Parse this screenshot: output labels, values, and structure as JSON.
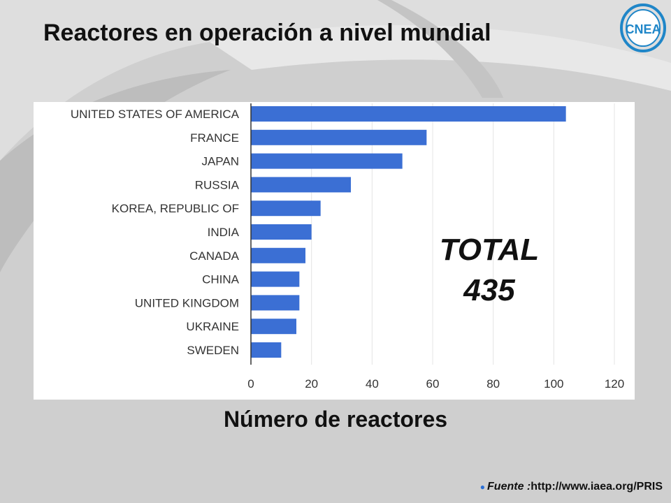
{
  "slide": {
    "title": "Reactores en operación a nivel mundial",
    "logo_text": "CNEA",
    "total_label": "TOTAL",
    "total_value": "435",
    "axis_caption": "Número de reactores",
    "source_label": "Fuente :",
    "source_url": "http://www.iaea.org/PRIS"
  },
  "colors": {
    "bar": "#3b6fd4",
    "logo_blue": "#1f86c8",
    "background": "#cfcfcf"
  },
  "chart_data": {
    "type": "bar",
    "orientation": "horizontal",
    "categories": [
      "UNITED STATES OF AMERICA",
      "FRANCE",
      "JAPAN",
      "RUSSIA",
      "KOREA, REPUBLIC OF",
      "INDIA",
      "CANADA",
      "CHINA",
      "UNITED KINGDOM",
      "UKRAINE",
      "SWEDEN"
    ],
    "values": [
      104,
      58,
      50,
      33,
      23,
      20,
      18,
      16,
      16,
      15,
      10
    ],
    "xlim": [
      0,
      120
    ],
    "xticks": [
      0,
      20,
      40,
      60,
      80,
      100,
      120
    ],
    "xlabel": "Número de reactores",
    "grid": true
  }
}
